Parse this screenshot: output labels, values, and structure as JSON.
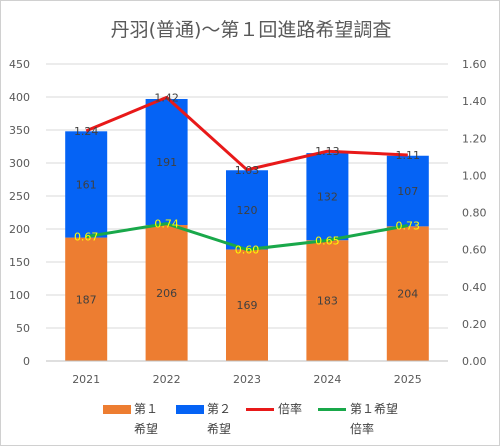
{
  "chart_data": {
    "type": "bar",
    "title": "丹羽(普通)〜第１回進路希望調査",
    "categories": [
      "2021",
      "2022",
      "2023",
      "2024",
      "2025"
    ],
    "series": [
      {
        "name": "第１希望",
        "type": "bar",
        "axis": "left",
        "color": "#ED7D31",
        "values": [
          187,
          206,
          169,
          183,
          204
        ]
      },
      {
        "name": "第２希望",
        "type": "bar",
        "axis": "left",
        "color": "#0563F5",
        "values": [
          161,
          191,
          120,
          132,
          107
        ]
      },
      {
        "name": "倍率",
        "type": "line",
        "axis": "right",
        "color": "#E81919",
        "values": [
          1.24,
          1.42,
          1.03,
          1.13,
          1.11
        ]
      },
      {
        "name": "第１希望倍率",
        "type": "line",
        "axis": "right",
        "color": "#19A84A",
        "values": [
          0.67,
          0.74,
          0.6,
          0.65,
          0.73
        ]
      }
    ],
    "bar_labels": {
      "s0": [
        "187",
        "206",
        "169",
        "183",
        "204"
      ],
      "s1": [
        "161",
        "191",
        "120",
        "132",
        "107"
      ],
      "s2": [
        "1.24",
        "1.42",
        "1.03",
        "1.13",
        "1.11"
      ],
      "s3": [
        "0.67",
        "0.74",
        "0.60",
        "0.65",
        "0.73"
      ]
    },
    "stacked": true,
    "ylim_left": [
      0,
      450
    ],
    "yticks_left": [
      "0",
      "50",
      "100",
      "150",
      "200",
      "250",
      "300",
      "350",
      "400",
      "450"
    ],
    "ylim_right": [
      0,
      1.6
    ],
    "yticks_right": [
      "0.00",
      "0.20",
      "0.40",
      "0.60",
      "0.80",
      "1.00",
      "1.20",
      "1.40",
      "1.60"
    ],
    "grid": true,
    "legend": "bottom",
    "legend_labels": [
      {
        "line1": "第１",
        "line2": "希望"
      },
      {
        "line1": "第２",
        "line2": "希望"
      },
      {
        "line1": "倍率",
        "line2": ""
      },
      {
        "line1": "第１希望",
        "line2": "倍率"
      }
    ]
  }
}
